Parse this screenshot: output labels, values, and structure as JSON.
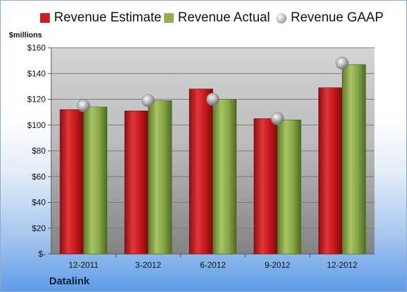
{
  "legend": {
    "estimate": "Revenue Estimate",
    "actual": "Revenue Actual",
    "gaap": "Revenue GAAP"
  },
  "unit_label": "$millions",
  "company": "Datalink",
  "colors": {
    "estimate": "#cc1e22",
    "actual": "#8fb04a",
    "gaap": "#b8b8b8"
  },
  "chart_data": {
    "type": "bar",
    "categories": [
      "12-2011",
      "3-2012",
      "6-2012",
      "9-2012",
      "12-2012"
    ],
    "series": [
      {
        "name": "Revenue Estimate",
        "values": [
          112,
          111,
          128,
          105,
          129
        ]
      },
      {
        "name": "Revenue Actual",
        "values": [
          114,
          119,
          120,
          104,
          147
        ]
      },
      {
        "name": "Revenue GAAP",
        "values": [
          115,
          119,
          120,
          105,
          148
        ],
        "marker": "circle"
      }
    ],
    "ylabel": "$millions",
    "ylim": [
      0,
      160
    ],
    "yticks": [
      0,
      20,
      40,
      60,
      80,
      100,
      120,
      140,
      160
    ],
    "ytick_labels": [
      "$-",
      "$20",
      "$40",
      "$60",
      "$80",
      "$100",
      "$120",
      "$140",
      "$160"
    ],
    "grid": true,
    "legend_position": "top"
  }
}
